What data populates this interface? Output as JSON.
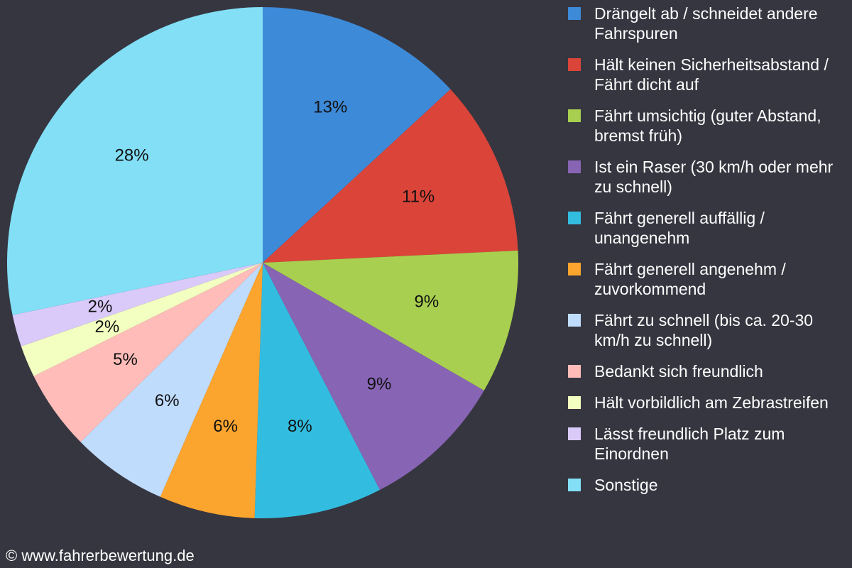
{
  "chart_data": {
    "type": "pie",
    "categories": [
      "Drängelt ab / schneidet andere Fahrspuren",
      "Hält keinen Sicherheitsabstand / Fährt dicht auf",
      "Fährt umsichtig (guter Abstand, bremst früh)",
      "Ist ein Raser (30 km/h oder mehr zu schnell)",
      "Fährt generell auffällig / unangenehm",
      "Fährt generell angenehm / zuvorkommend",
      "Fährt zu schnell (bis ca. 20-30 km/h zu schnell)",
      "Bedankt sich freundlich",
      "Hält vorbildlich am Zebrastreifen",
      "Lässt freundlich Platz zum Einordnen",
      "Sonstige"
    ],
    "values": [
      13,
      11,
      9,
      9,
      8,
      6,
      6,
      5,
      2,
      2,
      28
    ],
    "value_labels": [
      "13%",
      "11%",
      "9%",
      "9%",
      "8%",
      "6%",
      "6%",
      "5%",
      "2%",
      "2%",
      "28%"
    ],
    "colors": [
      "#3d8ad8",
      "#db4439",
      "#a8cf4f",
      "#8764b4",
      "#32bde0",
      "#fca52e",
      "#c0dcfd",
      "#ffbcb8",
      "#f3ffc0",
      "#dacafa",
      "#82dff6"
    ],
    "legend": "right",
    "footer": "© www.fahrerbewertung.de"
  }
}
